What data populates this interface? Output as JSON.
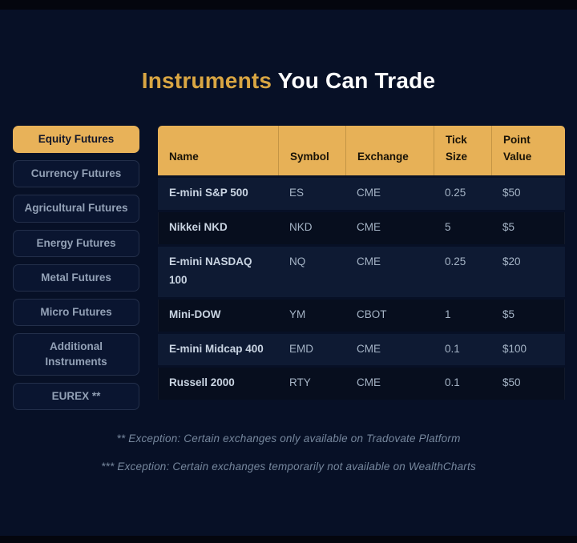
{
  "title": {
    "highlight": "Instruments",
    "rest": "You Can Trade"
  },
  "sidebar": {
    "items": [
      {
        "label": "Equity Futures",
        "active": true
      },
      {
        "label": "Currency Futures",
        "active": false
      },
      {
        "label": "Agricultural Futures",
        "active": false
      },
      {
        "label": "Energy Futures",
        "active": false
      },
      {
        "label": "Metal Futures",
        "active": false
      },
      {
        "label": "Micro Futures",
        "active": false
      },
      {
        "label": "Additional Instruments",
        "active": false
      },
      {
        "label": "EUREX **",
        "active": false
      }
    ]
  },
  "table": {
    "columns": [
      "Name",
      "Symbol",
      "Exchange",
      "Tick Size",
      "Point Value"
    ],
    "rows": [
      [
        "E-mini S&P 500",
        "ES",
        "CME",
        "0.25",
        "$50"
      ],
      [
        "Nikkei NKD",
        "NKD",
        "CME",
        "5",
        "$5"
      ],
      [
        "E-mini NASDAQ 100",
        "NQ",
        "CME",
        "0.25",
        "$20"
      ],
      [
        "Mini-DOW",
        "YM",
        "CBOT",
        "1",
        "$5"
      ],
      [
        "E-mini Midcap 400",
        "EMD",
        "CME",
        "0.1",
        "$100"
      ],
      [
        "Russell 2000",
        "RTY",
        "CME",
        "0.1",
        "$50"
      ]
    ]
  },
  "footnotes": [
    "** Exception: Certain exchanges only available on Tradovate Platform",
    "*** Exception: Certain exchanges temporarily not available on WealthCharts"
  ],
  "colors": {
    "background": "#071026",
    "edge_bar": "#04060e",
    "accent_gold": "#e8b259",
    "title_gold": "#d9a643",
    "row_light": "#0e1a33",
    "row_dark": "#070e1e",
    "text_primary": "#c9d4e2",
    "text_secondary": "#a5b4c6",
    "footnote_text": "#76879d"
  }
}
